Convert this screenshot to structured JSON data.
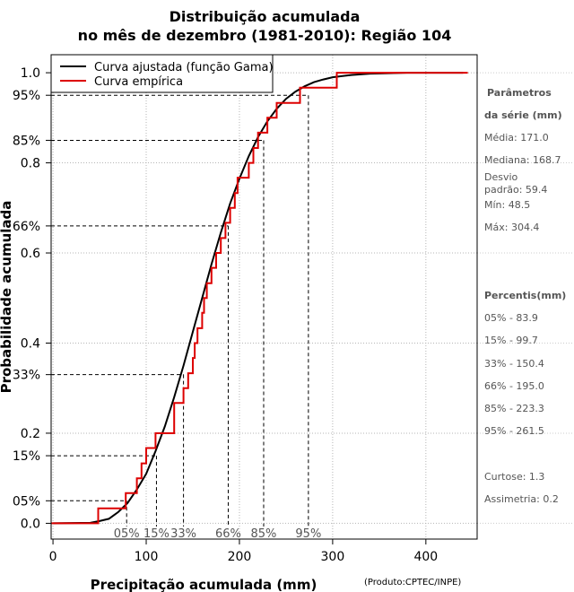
{
  "chart_data": {
    "type": "line",
    "title_line1": "Distribuição acumulada",
    "title_line2": "no mês de dezembro (1981-2010): Região 104",
    "xlabel": "Precipitação acumulada (mm)",
    "ylabel": "Probabilidade acumulada",
    "credit": "(Produto:CPTEC/INPE)",
    "xlim": [
      -2,
      455
    ],
    "ylim": [
      -0.035,
      1.04
    ],
    "x_ticks": [
      0,
      100,
      200,
      300,
      400
    ],
    "x_tick_labels": [
      "0",
      "100",
      "200",
      "300",
      "400"
    ],
    "y_ticks": [
      0.0,
      0.2,
      0.4,
      0.6,
      0.8,
      1.0
    ],
    "y_tick_labels": [
      "0.0",
      "0.2",
      "0.4",
      "0.6",
      "0.8",
      "1.0"
    ],
    "percentile_levels": [
      0.05,
      0.15,
      0.33,
      0.66,
      0.85,
      0.95
    ],
    "percentile_y_labels": [
      "05%",
      "15%",
      "33%",
      "66%",
      "85%",
      "95%"
    ],
    "percentile_x_labels": [
      "05%",
      "15%",
      "33%",
      "66%",
      "85%",
      "95%"
    ],
    "percentile_values": [
      83.9,
      99.7,
      150.4,
      195.0,
      223.3,
      261.5
    ],
    "percentile_marker_x": [
      79,
      111,
      140,
      188,
      226,
      274
    ],
    "legend": [
      {
        "label": "Curva ajustada (função Gama)",
        "color": "#000000"
      },
      {
        "label": "Curva empírica",
        "color": "#dd0000"
      }
    ],
    "series": [
      {
        "name": "Curva ajustada (função Gama)",
        "color": "#000000",
        "x": [
          0,
          40,
          50,
          60,
          70,
          80,
          90,
          100,
          110,
          120,
          130,
          140,
          150,
          160,
          170,
          180,
          190,
          200,
          210,
          220,
          230,
          240,
          250,
          260,
          270,
          280,
          290,
          300,
          320,
          340,
          360,
          380,
          400,
          420,
          440
        ],
        "y": [
          0.0,
          0.001,
          0.005,
          0.01,
          0.025,
          0.045,
          0.075,
          0.11,
          0.16,
          0.215,
          0.28,
          0.35,
          0.425,
          0.5,
          0.575,
          0.645,
          0.71,
          0.765,
          0.815,
          0.857,
          0.892,
          0.92,
          0.942,
          0.958,
          0.97,
          0.979,
          0.985,
          0.99,
          0.995,
          0.998,
          0.999,
          1.0,
          1.0,
          1.0,
          1.0
        ]
      },
      {
        "name": "Curva empírica",
        "color": "#dd0000",
        "x": [
          48.5,
          78,
          90,
          95,
          100,
          110,
          130,
          140,
          145,
          150,
          152,
          155,
          160,
          162,
          165,
          170,
          175,
          180,
          185,
          190,
          195,
          198,
          210,
          215,
          220,
          223,
          225,
          230,
          240,
          245,
          250,
          265,
          270,
          275,
          285,
          304.4,
          445
        ],
        "y": [
          0.033,
          0.067,
          0.1,
          0.133,
          0.167,
          0.2,
          0.267,
          0.3,
          0.333,
          0.367,
          0.4,
          0.433,
          0.467,
          0.5,
          0.533,
          0.567,
          0.6,
          0.633,
          0.667,
          0.7,
          0.733,
          0.767,
          0.8,
          0.833,
          0.867,
          0.867,
          0.867,
          0.9,
          0.933,
          0.933,
          0.933,
          0.967,
          0.967,
          0.967,
          0.967,
          1.0,
          1.0
        ]
      }
    ]
  },
  "side_panel": {
    "param_head_1": "Parâmetros",
    "param_head_2": "da série (mm)",
    "media": "Média: 171.0",
    "mediana": "Mediana: 168.7",
    "desvio_1": "Desvio",
    "desvio_2": "padrão: 59.4",
    "min": "Mín: 48.5",
    "max": "Máx: 304.4",
    "pct_head": "Percentis(mm)",
    "p05": "05% - 83.9",
    "p15": "15% - 99.7",
    "p33": "33% - 150.4",
    "p66": "66% - 195.0",
    "p85": "85% - 223.3",
    "p95": "95% - 261.5",
    "curtose": "Curtose: 1.3",
    "assimetria": "Assimetria: 0.2"
  }
}
